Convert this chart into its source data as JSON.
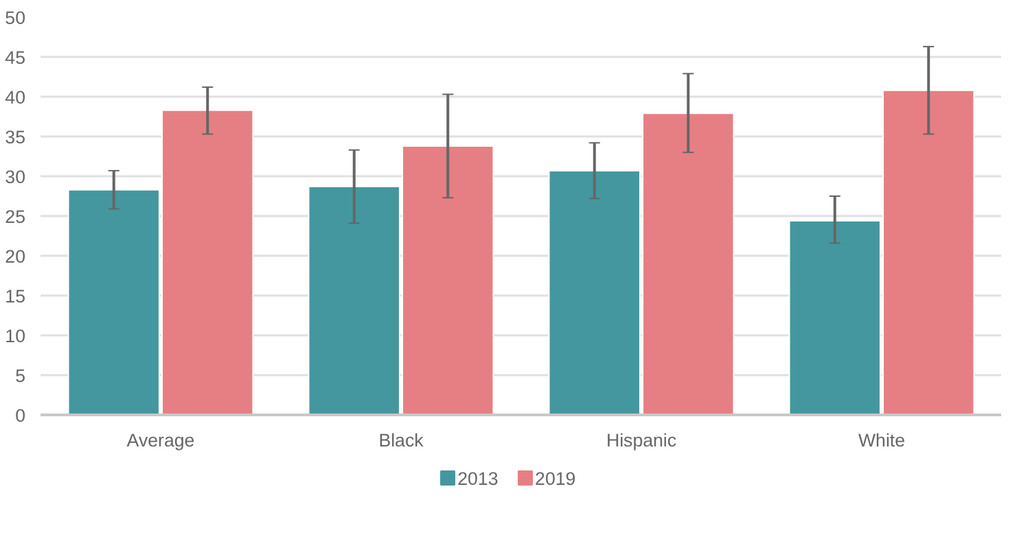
{
  "chart_data": {
    "type": "bar",
    "categories": [
      "Average",
      "Black",
      "Hispanic",
      "White"
    ],
    "series": [
      {
        "name": "2013",
        "color": "#44979f",
        "values": [
          28.3,
          28.7,
          30.7,
          24.4
        ],
        "errors": [
          [
            25.9,
            30.7
          ],
          [
            24.1,
            33.3
          ],
          [
            27.2,
            34.2
          ],
          [
            21.6,
            27.5
          ]
        ]
      },
      {
        "name": "2019",
        "color": "#e67f83",
        "values": [
          38.3,
          33.8,
          37.9,
          40.8
        ],
        "errors": [
          [
            35.3,
            41.2
          ],
          [
            27.3,
            40.3
          ],
          [
            33.0,
            42.9
          ],
          [
            35.3,
            46.3
          ]
        ]
      }
    ],
    "ylim": [
      0,
      50
    ],
    "yticks": [
      0,
      5,
      10,
      15,
      20,
      25,
      30,
      35,
      40,
      45,
      50
    ],
    "grid": "y",
    "legend": "bottom"
  }
}
